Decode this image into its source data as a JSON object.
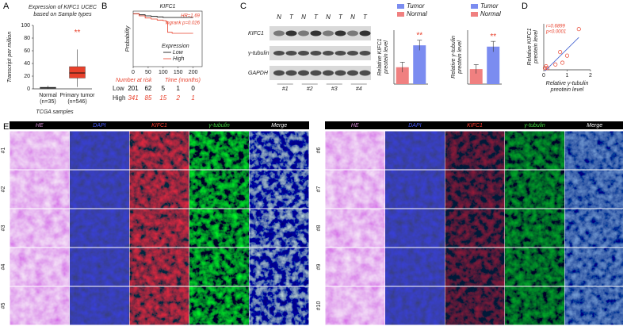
{
  "panel_labels": {
    "a": "A",
    "b": "B",
    "c": "C",
    "d": "D",
    "e": "E"
  },
  "chart_data": [
    {
      "type": "box",
      "title_lines": [
        "Expression of KIFC1 UCEC",
        "based on Sample types"
      ],
      "ylabel": "Transcript per million",
      "xlabel": "TCGA samples",
      "categories": [
        "Normal",
        "Primary tumor"
      ],
      "category_counts": [
        "(n=35)",
        "(n=546)"
      ],
      "boxes": [
        {
          "min": 0,
          "q1": 0.8,
          "median": 1.5,
          "q3": 2.5,
          "max": 5
        },
        {
          "min": 3,
          "q1": 17,
          "median": 25,
          "q3": 35,
          "max": 62
        }
      ],
      "colors": [
        "#888888",
        "#e8412c"
      ],
      "significance": "**",
      "ylim": [
        0,
        100
      ],
      "yticks": [
        0,
        20,
        40,
        60,
        80,
        100
      ]
    },
    {
      "type": "survival",
      "title": "KIFC1",
      "ylabel": "Probability",
      "xlabel": "Time (months)",
      "xlim": [
        0,
        230
      ],
      "ylim": [
        0,
        1.05
      ],
      "xticks": [
        0,
        50,
        100,
        150,
        200
      ],
      "annotations": [
        "HR=1.69",
        "logrank p=0.026"
      ],
      "legend_title": "Expression",
      "series": [
        {
          "name": "Low",
          "color": "#000000",
          "x": [
            0,
            20,
            40,
            60,
            80,
            100,
            120,
            150,
            200
          ],
          "values": [
            1,
            0.98,
            0.96,
            0.95,
            0.94,
            0.93,
            0.93,
            0.93,
            0.93
          ]
        },
        {
          "name": "High",
          "color": "#e8412c",
          "x": [
            0,
            20,
            40,
            60,
            80,
            100,
            110,
            115,
            130,
            200
          ],
          "values": [
            1,
            0.96,
            0.92,
            0.9,
            0.88,
            0.87,
            0.85,
            0.65,
            0.63,
            0.63
          ]
        }
      ],
      "risk_title": "Number at risk",
      "risk_table": [
        [
          201,
          62,
          5,
          1,
          0
        ],
        [
          341,
          85,
          15,
          2,
          1
        ]
      ]
    },
    {
      "type": "bar",
      "ylabel_lines": [
        "Relative KIFC1",
        "preotein level"
      ],
      "series": [
        {
          "name": "Tumor",
          "color": "#7b8cf0",
          "values": [
            2.3
          ],
          "errors": [
            0.3
          ]
        },
        {
          "name": "Normal",
          "color": "#f08080",
          "values": [
            1
          ],
          "errors": [
            0.3
          ]
        }
      ],
      "significance": "**",
      "ylim": [
        0,
        3.2
      ]
    },
    {
      "type": "bar",
      "ylabel_lines": [
        "Relative γ-tubulin",
        "preotein level"
      ],
      "series": [
        {
          "name": "Tumor",
          "color": "#7b8cf0",
          "values": [
            2.5
          ],
          "errors": [
            0.35
          ]
        },
        {
          "name": "Normal",
          "color": "#f08080",
          "values": [
            1
          ],
          "errors": [
            0.3
          ]
        }
      ],
      "significance": "**",
      "ylim": [
        0,
        3.6
      ]
    },
    {
      "type": "scatter",
      "xlabel_lines": [
        "Relative γ-tubulin",
        "preotein level"
      ],
      "ylabel_lines": [
        "Relative KIFC1",
        "preotein level"
      ],
      "x": [
        0.05,
        0.1,
        0.15,
        0.5,
        0.7,
        0.8,
        1.0,
        1.5
      ],
      "values": [
        0.1,
        0.2,
        0.1,
        0.3,
        1.0,
        0.4,
        0.8,
        2.3
      ],
      "color": "#e8412c",
      "line_color": "#4060d0",
      "annotations": [
        "r=0.6899",
        "p<0.0001"
      ],
      "xlim": [
        0,
        2
      ],
      "ylim": [
        0,
        2.6
      ],
      "xticks": [
        0,
        1,
        2
      ]
    }
  ],
  "blot": {
    "lanes": [
      "N",
      "T",
      "N",
      "T",
      "N",
      "T",
      "N",
      "T"
    ],
    "rows": [
      "KIFC1",
      "γ-tubulin",
      "GAPDH"
    ],
    "pairs": [
      "#1",
      "#2",
      "#3",
      "#4"
    ]
  },
  "histology": {
    "columns": [
      "HE",
      "DAPI",
      "KIFC1",
      "γ-tubulin",
      "Merge"
    ],
    "left_rows": [
      "#1",
      "#2",
      "#3",
      "#4",
      "#5"
    ],
    "right_rows": [
      "#6",
      "#7",
      "#8",
      "#9",
      "#10"
    ]
  }
}
